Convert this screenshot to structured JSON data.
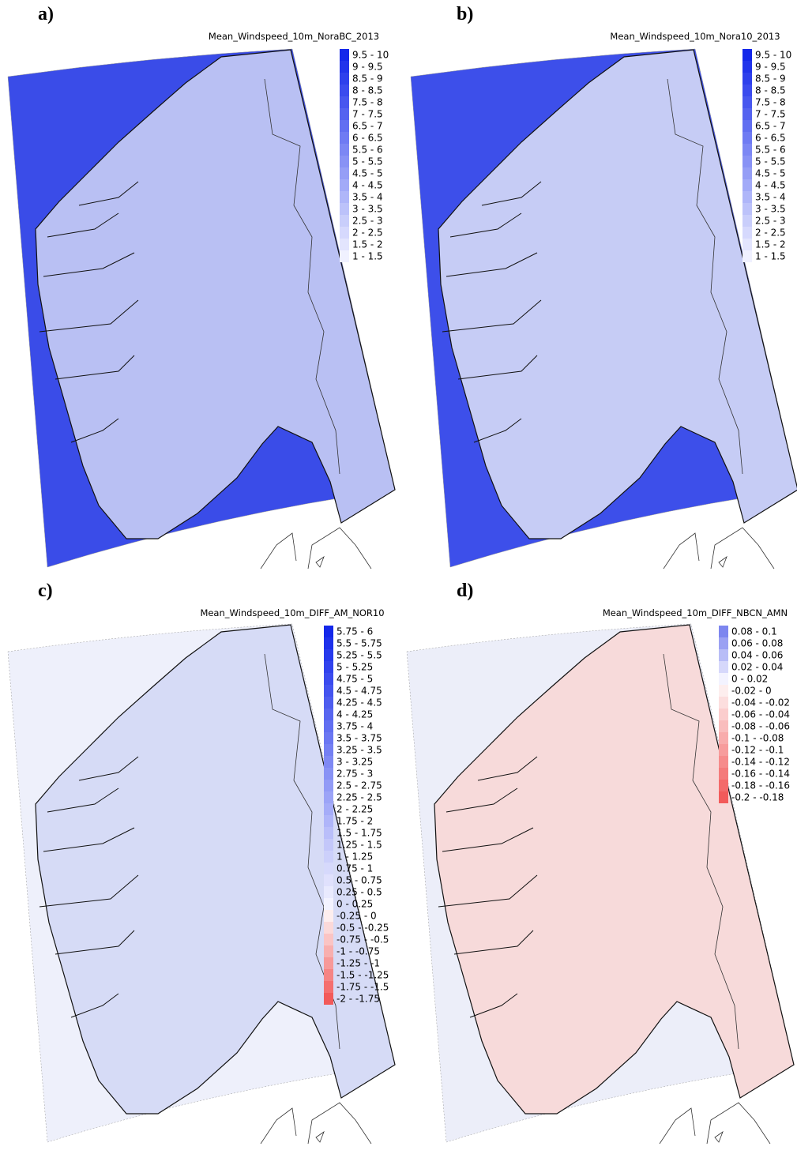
{
  "panels": [
    {
      "label": "a)",
      "title": "Mean_Windspeed_10m_NoraBC_2013",
      "legend": [
        "9.5 - 10",
        "9 - 9.5",
        "8.5 - 9",
        "8 - 8.5",
        "7.5 - 8",
        "7 - 7.5",
        "6.5 - 7",
        "6 - 6.5",
        "5.5 - 6",
        "5 - 5.5",
        "4.5 - 5",
        "4 - 4.5",
        "3.5 - 4",
        "3 - 3.5",
        "2.5 - 3",
        "2 - 2.5",
        "1.5 - 2",
        "1 - 1.5"
      ]
    },
    {
      "label": "b)",
      "title": "Mean_Windspeed_10m_Nora10_2013",
      "legend": [
        "9.5 - 10",
        "9 - 9.5",
        "8.5 - 9",
        "8 - 8.5",
        "7.5 - 8",
        "7 - 7.5",
        "6.5 - 7",
        "6 - 6.5",
        "5.5 - 6",
        "5 - 5.5",
        "4.5 - 5",
        "4 - 4.5",
        "3.5 - 4",
        "3 - 3.5",
        "2.5 - 3",
        "2 - 2.5",
        "1.5 - 2",
        "1 - 1.5"
      ]
    },
    {
      "label": "c)",
      "title": "Mean_Windspeed_10m_DIFF_AM_NOR10",
      "legend": [
        "5.75 - 6",
        "5.5 - 5.75",
        "5.25 - 5.5",
        "5 - 5.25",
        "4.75 - 5",
        "4.5 - 4.75",
        "4.25 - 4.5",
        "4 - 4.25",
        "3.75 - 4",
        "3.5 - 3.75",
        "3.25 - 3.5",
        "3 - 3.25",
        "2.75 - 3",
        "2.5 - 2.75",
        "2.25 - 2.5",
        "2 - 2.25",
        "1.75 - 2",
        "1.5 - 1.75",
        "1.25 - 1.5",
        "1 - 1.25",
        "0.75 - 1",
        "0.5 - 0.75",
        "0.25 - 0.5",
        "0 - 0.25",
        "-0.25 - 0",
        "-0.5 - -0.25",
        "-0.75 - -0.5",
        "-1 - -0.75",
        "-1.25 - -1",
        "-1.5 - -1.25",
        "-1.75 - -1.5",
        "-2 - -1.75"
      ]
    },
    {
      "label": "d)",
      "title": "Mean_Windspeed_10m_DIFF_NBCN_AMN",
      "legend": [
        "0.08 - 0.1",
        "0.06 - 0.08",
        "0.04 - 0.06",
        "0.02 - 0.04",
        "0 - 0.02",
        "-0.02 - 0",
        "-0.04 - -0.02",
        "-0.06 - -0.04",
        "-0.08 - -0.06",
        "-0.1 - -0.08",
        "-0.12 - -0.1",
        "-0.14 - -0.12",
        "-0.16 - -0.14",
        "-0.18 - -0.16",
        "-0.2 - -0.18"
      ]
    }
  ]
}
